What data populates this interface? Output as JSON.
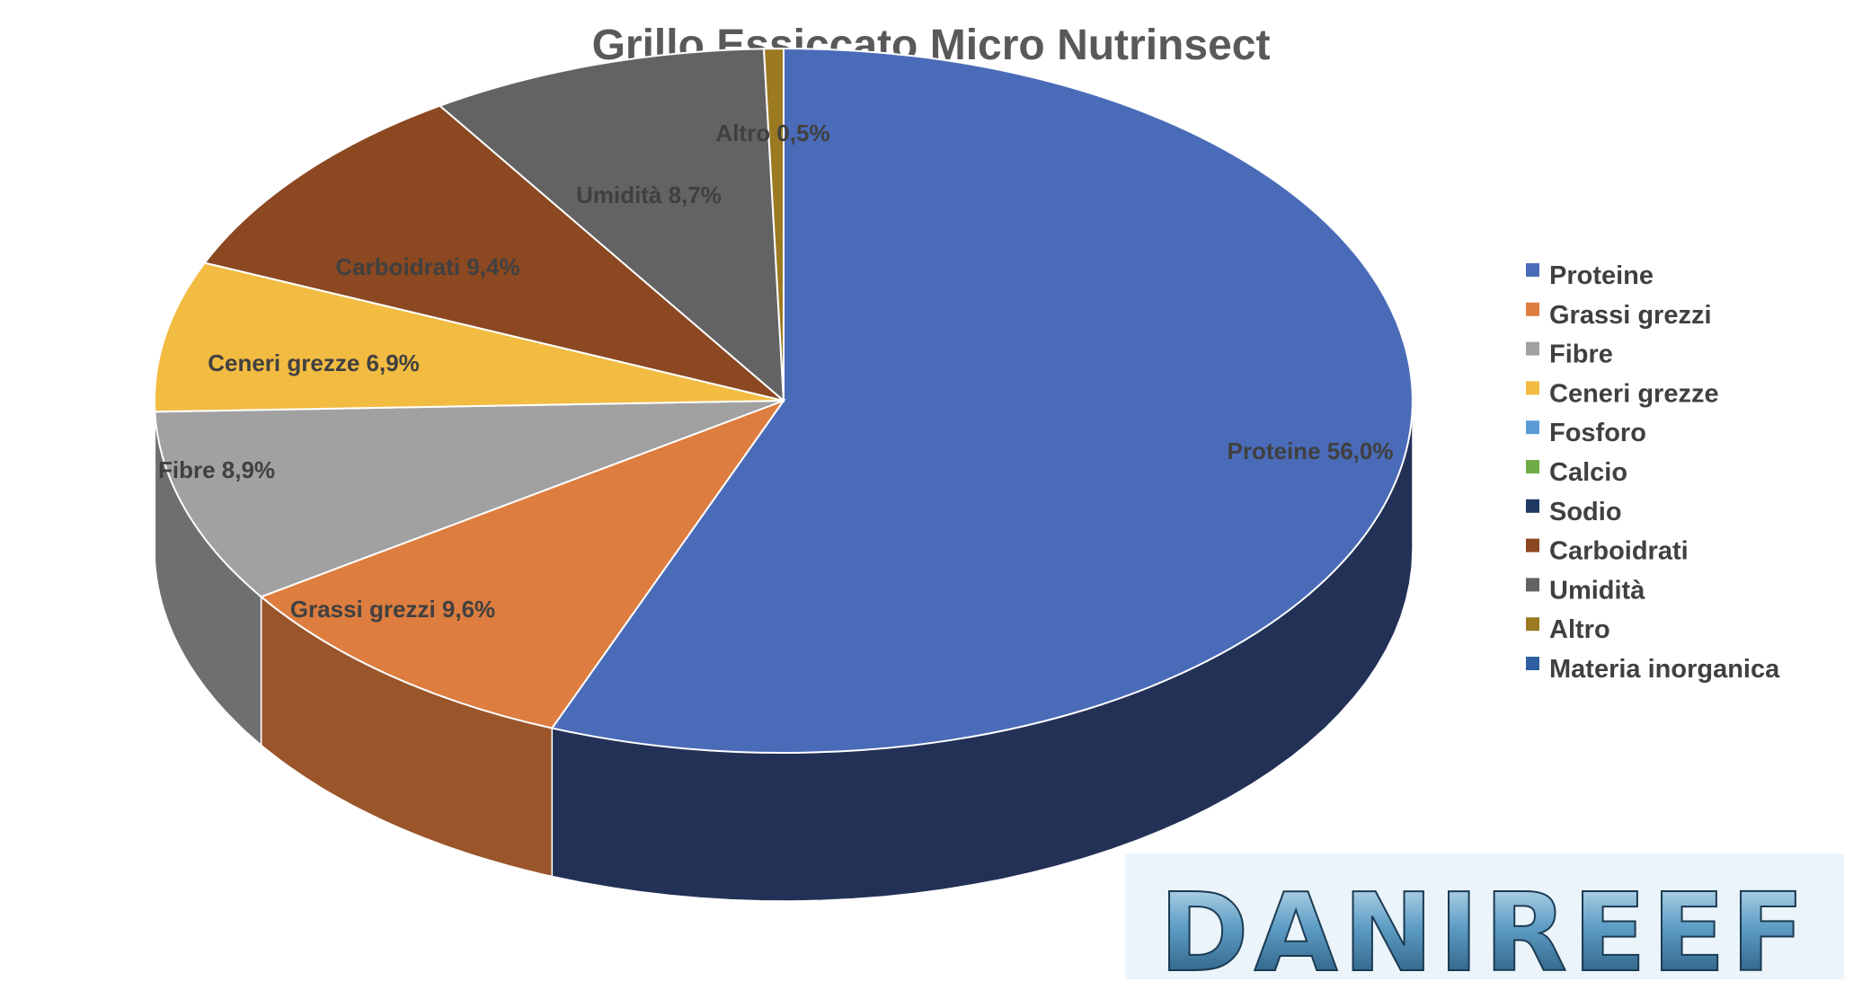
{
  "chart_data": {
    "type": "pie",
    "title": "Grillo Essiccato Micro Nutrinsect",
    "three_d": true,
    "legend_position": "right",
    "slices": [
      {
        "name": "Proteine",
        "value": 56.0,
        "label": "Proteine 56,0%",
        "color": "#4a6bb8",
        "side_color": "#233157"
      },
      {
        "name": "Grassi grezzi",
        "value": 9.6,
        "label": "Grassi grezzi 9,6%",
        "color": "#dd7d3f",
        "side_color": "#9a552b"
      },
      {
        "name": "Fibre",
        "value": 8.9,
        "label": "Fibre 8,9%",
        "color": "#a1a1a1",
        "side_color": "#6f6f6f"
      },
      {
        "name": "Ceneri grezze",
        "value": 6.9,
        "label": "Ceneri grezze 6,9%",
        "color": "#f2bb42",
        "side_color": "#a8822c"
      },
      {
        "name": "Fosforo",
        "value": 0,
        "label": "",
        "color": "#5b9bd5",
        "side_color": "#3d6a92"
      },
      {
        "name": "Calcio",
        "value": 0,
        "label": "",
        "color": "#70ad47",
        "side_color": "#4c7630"
      },
      {
        "name": "Sodio",
        "value": 0,
        "label": "",
        "color": "#203864",
        "side_color": "#141f36"
      },
      {
        "name": "Carboidrati",
        "value": 9.4,
        "label": "Carboidrati 9,4%",
        "color": "#8b4821",
        "side_color": "#5e3016"
      },
      {
        "name": "Umidità",
        "value": 8.7,
        "label": "Umidità 8,7%",
        "color": "#636363",
        "side_color": "#3f3f3f"
      },
      {
        "name": "Altro",
        "value": 0.5,
        "label": "Altro 0,5%",
        "color": "#9c7a22",
        "side_color": "#6a5216"
      },
      {
        "name": "Materia inorganica",
        "value": 0,
        "label": "",
        "color": "#2e5fa0",
        "side_color": "#1e3f6a"
      }
    ]
  },
  "watermark": {
    "text": "DANIREEF",
    "color": "#5a8fb5"
  }
}
